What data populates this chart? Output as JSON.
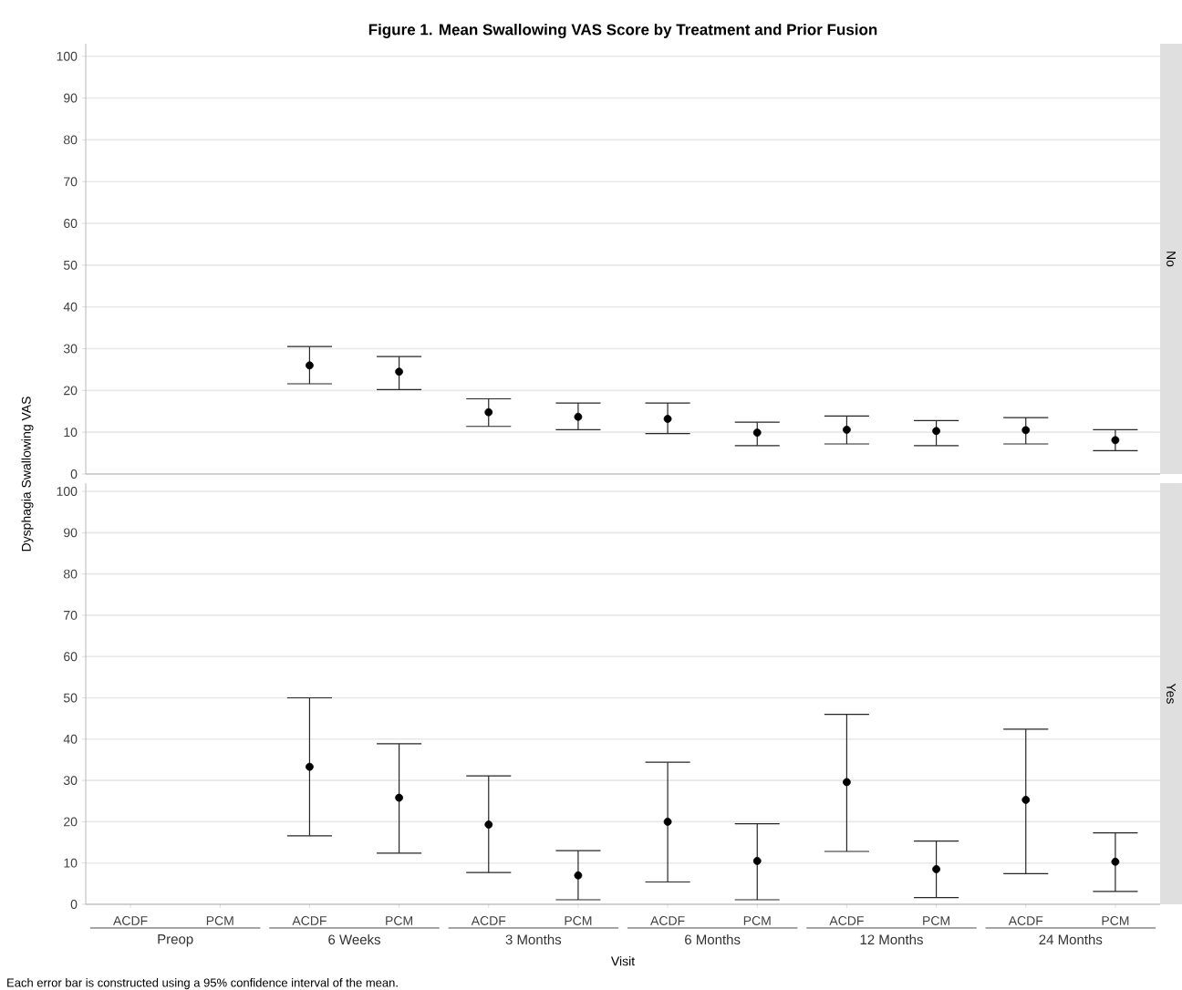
{
  "chart_data": [
    {
      "type": "scatter",
      "title": "Figure 1. Mean Swallowing VAS Score by Treatment and Prior Fusion",
      "ylabel": "Dysphagia Swallowing VAS",
      "y2label": "No",
      "tick_labels": "y",
      "categories": [
        null,
        null,
        null,
        null,
        null,
        null,
        null,
        null,
        null,
        null,
        null,
        null
      ],
      "values": [
        null,
        null,
        26,
        24.5,
        14.8,
        13.7,
        13.2,
        9.9,
        10.6,
        10.3,
        10.5,
        8.1
      ],
      "errors": [
        null,
        null,
        [
          21.6,
          30.5
        ],
        [
          20.2,
          28.1
        ],
        [
          11.4,
          18
        ],
        [
          10.6,
          17
        ],
        [
          9.7,
          17
        ],
        [
          6.8,
          12.4
        ],
        [
          7.2,
          13.9
        ],
        [
          6.8,
          12.8
        ],
        [
          7.2,
          13.5
        ],
        [
          5.6,
          10.6
        ]
      ],
      "color": "#000000",
      "marker": "circle",
      "grid": "y",
      "ylim": [
        0,
        103
      ],
      "yticks": [
        0,
        10,
        20,
        30,
        40,
        50,
        60,
        70,
        80,
        90,
        100
      ]
    },
    {
      "type": "scatter",
      "y2label": "Yes",
      "xlabel": "Visit",
      "categories": [
        "ACDF",
        "PCM",
        "ACDF",
        "PCM",
        "ACDF",
        "PCM",
        "ACDF",
        "PCM",
        "ACDF",
        "PCM",
        "ACDF",
        "PCM"
      ],
      "values": [
        null,
        null,
        33.3,
        25.8,
        19.3,
        7.0,
        20,
        10.5,
        29.6,
        8.5,
        25.3,
        10.3
      ],
      "errors": [
        null,
        null,
        [
          16.6,
          50
        ],
        [
          12.4,
          38.9
        ],
        [
          7.7,
          31.1
        ],
        [
          1.1,
          13
        ],
        [
          5.4,
          34.4
        ],
        [
          1.1,
          19.5
        ],
        [
          12.8,
          46
        ],
        [
          1.6,
          15.3
        ],
        [
          7.4,
          42.4
        ],
        [
          3.1,
          17.3
        ]
      ],
      "color": "#000000",
      "marker": "circle",
      "grid": "y",
      "ylim": [
        0,
        102
      ],
      "yticks": [
        0,
        10,
        20,
        30,
        40,
        50,
        60,
        70,
        80,
        90,
        100
      ],
      "annotations": [
        "Preop",
        "6 Weeks",
        "3 Months",
        "6 Months",
        "12 Months",
        "24 Months",
        "Each error bar is constructed using a 95% confidence interval of the mean."
      ]
    }
  ]
}
